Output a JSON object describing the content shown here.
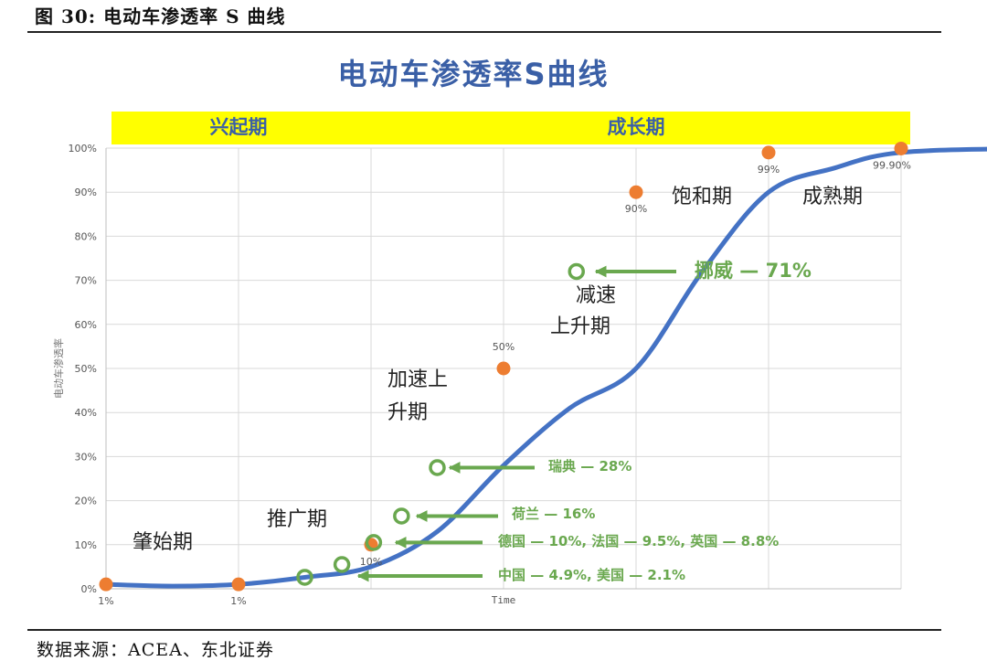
{
  "figure": {
    "caption": "图 30: 电动车渗透率 S 曲线",
    "source": "数据来源：ACEA、东北证券"
  },
  "chart_data": {
    "type": "line",
    "title": "电动车渗透率S曲线",
    "xlabel": "Time",
    "ylabel": "电动车渗透率",
    "ylim": [
      0,
      100
    ],
    "y_ticks": [
      "0%",
      "10%",
      "20%",
      "30%",
      "40%",
      "50%",
      "60%",
      "70%",
      "80%",
      "90%",
      "100%"
    ],
    "grid": true,
    "colors": {
      "curve": "#4472c4",
      "milestone": "#ed7d31",
      "country": "#6aa84f",
      "phase_band": "#ffff00",
      "phase_text": "#3a5fa6",
      "title": "#3a5fa6"
    },
    "phases": [
      {
        "label": "兴起期",
        "x_range": [
          0,
          2
        ]
      },
      {
        "label": "成长期",
        "x_range": [
          2,
          6
        ]
      },
      {
        "label": "成熟期",
        "x_range": [
          6,
          8
        ]
      }
    ],
    "curve_points": [
      {
        "x": 0,
        "y": 1
      },
      {
        "x": 0.5,
        "y": 0.6
      },
      {
        "x": 1,
        "y": 1
      },
      {
        "x": 1.5,
        "y": 2.6
      },
      {
        "x": 2,
        "y": 5
      },
      {
        "x": 2.5,
        "y": 13
      },
      {
        "x": 3,
        "y": 28
      },
      {
        "x": 3.5,
        "y": 41
      },
      {
        "x": 4,
        "y": 50
      },
      {
        "x": 4.5,
        "y": 72
      },
      {
        "x": 5,
        "y": 90
      },
      {
        "x": 5.5,
        "y": 95.5
      },
      {
        "x": 6,
        "y": 99
      },
      {
        "x": 7,
        "y": 99.9
      },
      {
        "x": 8,
        "y": 99.9
      }
    ],
    "milestones": [
      {
        "x": 0,
        "y": 1,
        "label": "1%"
      },
      {
        "x": 1,
        "y": 1,
        "label": "1%"
      },
      {
        "x": 2,
        "y": 10,
        "label": "10%"
      },
      {
        "x": 3,
        "y": 50,
        "label": "50%"
      },
      {
        "x": 4,
        "y": 90,
        "label": "90%"
      },
      {
        "x": 5,
        "y": 99,
        "label": "99%"
      },
      {
        "x": 6,
        "y": 99.9,
        "label": "99.90%"
      }
    ],
    "markers": [
      {
        "x": 1.5,
        "y": 2.6
      },
      {
        "x": 1.78,
        "y": 5.5
      },
      {
        "x": 2.02,
        "y": 10.5
      },
      {
        "x": 2.23,
        "y": 16.5
      },
      {
        "x": 2.5,
        "y": 27.5
      },
      {
        "x": 3.55,
        "y": 72
      }
    ],
    "country_annotations": [
      {
        "text": "挪威 — 71%",
        "marker": 5
      },
      {
        "text": "瑞典 — 28%",
        "marker": 4
      },
      {
        "text": "荷兰 — 16%",
        "marker": 3
      },
      {
        "text": "德国 — 10%, 法国 — 9.5%, 英国 — 8.8%",
        "marker": 2
      },
      {
        "text": "中国 — 4.9%, 美国 — 2.1%",
        "marker": 1
      }
    ],
    "stage_labels": [
      {
        "lines": [
          "肇始期"
        ]
      },
      {
        "lines": [
          "推广期"
        ]
      },
      {
        "lines": [
          "加速上",
          "升期"
        ]
      },
      {
        "lines": [
          "减速",
          "上升期"
        ]
      },
      {
        "lines": [
          "饱和期"
        ]
      },
      {
        "lines": [
          "成熟期"
        ]
      }
    ]
  }
}
